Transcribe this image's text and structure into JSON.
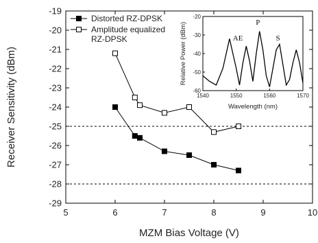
{
  "chart_data": [
    {
      "type": "line",
      "xlabel": "MZM Bias Voltage (V)",
      "ylabel": "Receiver Sensitivity (dBm)",
      "xlim": [
        5,
        10
      ],
      "ylim": [
        -29,
        -19
      ],
      "xticks": [
        5,
        6,
        7,
        8,
        9,
        10
      ],
      "yticks": [
        -19,
        -20,
        -21,
        -22,
        -23,
        -24,
        -25,
        -26,
        -27,
        -28,
        -29
      ],
      "reference_lines_y": [
        -25,
        -28
      ],
      "legend_position": "top-left",
      "grid": false,
      "series": [
        {
          "name": "Distorted RZ-DPSK",
          "marker": "filled-square",
          "color": "#000000",
          "x": [
            6.0,
            6.4,
            6.5,
            7.0,
            7.5,
            8.0,
            8.5
          ],
          "y": [
            -24.0,
            -25.5,
            -25.6,
            -26.3,
            -26.5,
            -27.0,
            -27.3
          ]
        },
        {
          "name": "Amplitude equalized RZ-DPSK",
          "name_lines": [
            "Amplitude equalized",
            "RZ-DPSK"
          ],
          "marker": "open-square",
          "color": "#000000",
          "x": [
            6.0,
            6.4,
            6.5,
            7.0,
            7.5,
            8.0,
            8.5
          ],
          "y": [
            -21.2,
            -23.5,
            -23.9,
            -24.3,
            -24.0,
            -25.3,
            -25.0
          ]
        }
      ]
    },
    {
      "type": "line",
      "position": "inset-top-right",
      "xlabel": "Wavelength (nm)",
      "ylabel": "Relative Power (dBm)",
      "xlim": [
        1540,
        1570
      ],
      "ylim": [
        -60,
        -20
      ],
      "xticks": [
        1540,
        1550,
        1560,
        1570
      ],
      "yticks": [
        -20,
        -30,
        -40,
        -50,
        -60
      ],
      "annotations": [
        {
          "text": "AE",
          "x": 1550.5,
          "y": -33
        },
        {
          "text": "P",
          "x": 1556.5,
          "y": -24.5
        },
        {
          "text": "S",
          "x": 1562.5,
          "y": -33
        }
      ],
      "series": [
        {
          "color": "#000000",
          "x": [
            1540,
            1542,
            1544,
            1546,
            1547,
            1548,
            1549,
            1550,
            1551,
            1552,
            1553,
            1554,
            1555,
            1556,
            1557,
            1558,
            1559,
            1560,
            1561,
            1562,
            1563,
            1564,
            1565,
            1566,
            1567,
            1568,
            1569,
            1570
          ],
          "y": [
            -52,
            -55,
            -57,
            -48,
            -40,
            -32,
            -40,
            -48,
            -57,
            -45,
            -36,
            -44,
            -55,
            -40,
            -28,
            -38,
            -52,
            -58,
            -48,
            -38,
            -35,
            -46,
            -57,
            -54,
            -45,
            -38,
            -45,
            -56
          ]
        }
      ]
    }
  ]
}
